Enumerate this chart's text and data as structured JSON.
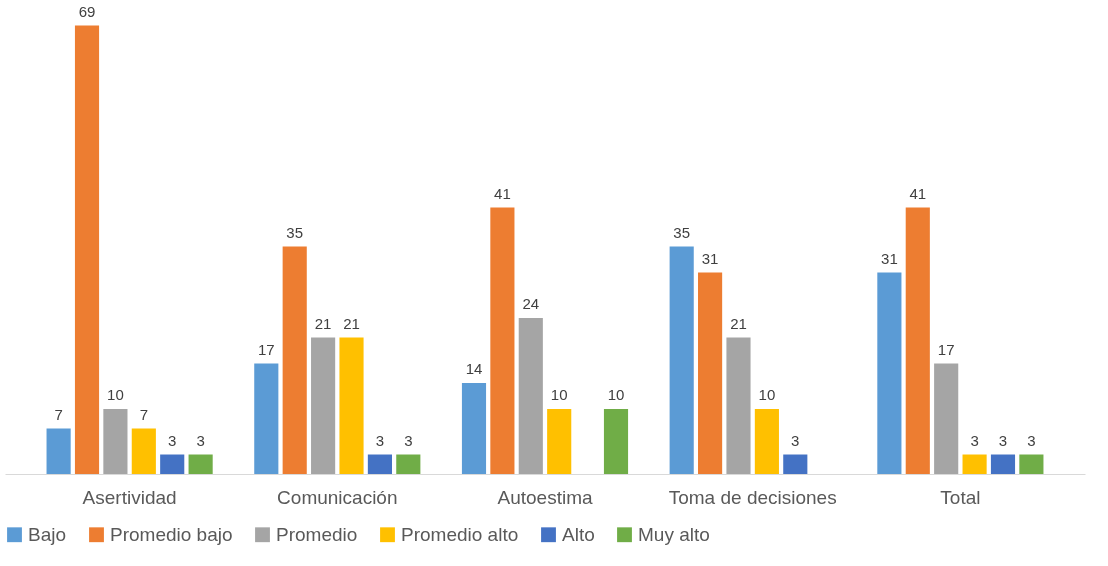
{
  "chart_data": {
    "type": "bar",
    "categories": [
      "Asertividad",
      "Comunicación",
      "Autoestima",
      "Toma de decisiones",
      "Total"
    ],
    "series": [
      {
        "name": "Bajo",
        "color": "#5b9bd5",
        "values": [
          7,
          17,
          14,
          35,
          31
        ]
      },
      {
        "name": "Promedio bajo",
        "color": "#ed7d31",
        "values": [
          69,
          35,
          41,
          31,
          41
        ]
      },
      {
        "name": "Promedio",
        "color": "#a5a5a5",
        "values": [
          10,
          21,
          24,
          21,
          17
        ]
      },
      {
        "name": "Promedio alto",
        "color": "#ffc000",
        "values": [
          7,
          21,
          10,
          10,
          3
        ]
      },
      {
        "name": "Alto",
        "color": "#4472c4",
        "values": [
          3,
          3,
          null,
          3,
          3
        ]
      },
      {
        "name": "Muy alto",
        "color": "#70ad47",
        "values": [
          3,
          3,
          10,
          null,
          3
        ]
      }
    ],
    "data_labels": true,
    "legend": "bottom"
  }
}
